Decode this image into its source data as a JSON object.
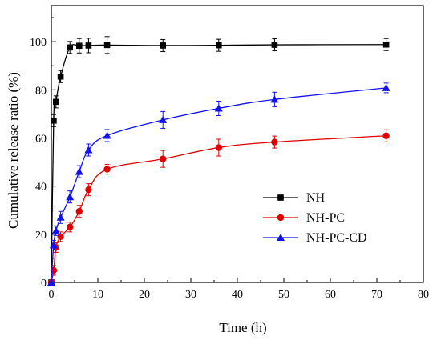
{
  "chart_data": {
    "type": "line",
    "xlabel": "Time (h)",
    "ylabel": "Cumulative release ratio (%)",
    "xlim": [
      0,
      80
    ],
    "ylim": [
      0,
      115
    ],
    "xticks": [
      0,
      10,
      20,
      30,
      40,
      50,
      60,
      70,
      80
    ],
    "yticks": [
      0,
      20,
      40,
      60,
      80,
      100
    ],
    "grid": false,
    "legend_position": "center-right",
    "series": [
      {
        "name": "NH",
        "color": "#000000",
        "marker": "square",
        "points": [
          {
            "x": 0,
            "y": 0,
            "err": 0
          },
          {
            "x": 0.5,
            "y": 67.2,
            "err": 2.5
          },
          {
            "x": 1,
            "y": 75.0,
            "err": 2.5
          },
          {
            "x": 2,
            "y": 85.5,
            "err": 2.5
          },
          {
            "x": 4,
            "y": 97.6,
            "err": 2.5
          },
          {
            "x": 6,
            "y": 98.3,
            "err": 3.0
          },
          {
            "x": 8,
            "y": 98.4,
            "err": 3.0
          },
          {
            "x": 12,
            "y": 98.6,
            "err": 3.5
          },
          {
            "x": 24,
            "y": 98.4,
            "err": 2.5
          },
          {
            "x": 36,
            "y": 98.5,
            "err": 2.5
          },
          {
            "x": 48,
            "y": 98.7,
            "err": 2.5
          },
          {
            "x": 72,
            "y": 98.8,
            "err": 2.5
          }
        ]
      },
      {
        "name": "NH-PC",
        "color": "#e00000",
        "marker": "circle",
        "points": [
          {
            "x": 0,
            "y": 0,
            "err": 0
          },
          {
            "x": 0.5,
            "y": 5.0,
            "err": 2.0
          },
          {
            "x": 1,
            "y": 14.5,
            "err": 2.0
          },
          {
            "x": 2,
            "y": 19.0,
            "err": 2.0
          },
          {
            "x": 4,
            "y": 23.0,
            "err": 2.0
          },
          {
            "x": 6,
            "y": 29.5,
            "err": 2.5
          },
          {
            "x": 8,
            "y": 38.5,
            "err": 2.5
          },
          {
            "x": 12,
            "y": 47.0,
            "err": 2.0
          },
          {
            "x": 24,
            "y": 51.3,
            "err": 3.5
          },
          {
            "x": 36,
            "y": 56.0,
            "err": 3.5
          },
          {
            "x": 48,
            "y": 58.3,
            "err": 2.5
          },
          {
            "x": 72,
            "y": 60.9,
            "err": 2.5
          }
        ]
      },
      {
        "name": "NH-PC-CD",
        "color": "#1010f0",
        "marker": "triangle",
        "points": [
          {
            "x": 0,
            "y": 0,
            "err": 0
          },
          {
            "x": 0.5,
            "y": 15.5,
            "err": 2.0
          },
          {
            "x": 1,
            "y": 21.5,
            "err": 2.0
          },
          {
            "x": 2,
            "y": 27.0,
            "err": 2.5
          },
          {
            "x": 4,
            "y": 35.5,
            "err": 2.5
          },
          {
            "x": 6,
            "y": 46.0,
            "err": 2.5
          },
          {
            "x": 8,
            "y": 55.0,
            "err": 2.5
          },
          {
            "x": 12,
            "y": 61.0,
            "err": 2.5
          },
          {
            "x": 24,
            "y": 67.5,
            "err": 3.5
          },
          {
            "x": 36,
            "y": 72.3,
            "err": 3.0
          },
          {
            "x": 48,
            "y": 76.0,
            "err": 3.0
          },
          {
            "x": 72,
            "y": 80.8,
            "err": 2.0
          }
        ]
      }
    ]
  }
}
